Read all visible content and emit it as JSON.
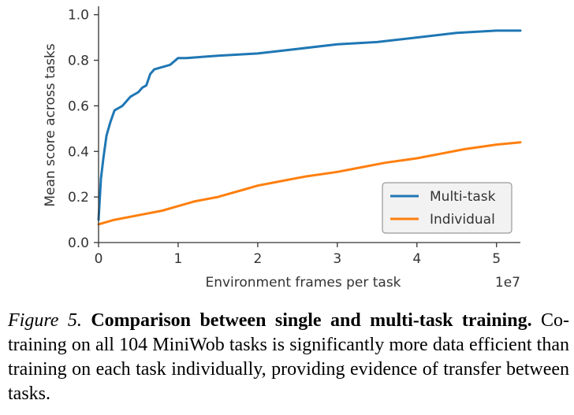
{
  "chart_data": {
    "type": "line",
    "xlabel": "Environment frames per task",
    "ylabel": "Mean score across tasks",
    "x_offset_label": "1e7",
    "xlim": [
      0,
      5.3
    ],
    "ylim": [
      0,
      1.03
    ],
    "xticks": [
      0,
      1,
      2,
      3,
      4,
      5
    ],
    "xtick_labels": [
      "0",
      "1",
      "2",
      "3",
      "4",
      "5"
    ],
    "yticks": [
      0.0,
      0.2,
      0.4,
      0.6,
      0.8,
      1.0
    ],
    "ytick_labels": [
      "0.0",
      "0.2",
      "0.4",
      "0.6",
      "0.8",
      "1.0"
    ],
    "grid": false,
    "legend_position": "lower-right",
    "series": [
      {
        "name": "Multi-task",
        "color": "#1f77b4",
        "x": [
          0,
          0.03,
          0.06,
          0.1,
          0.15,
          0.2,
          0.3,
          0.4,
          0.5,
          0.55,
          0.6,
          0.65,
          0.7,
          0.8,
          0.9,
          1.0,
          1.1,
          1.5,
          2.0,
          2.5,
          3.0,
          3.5,
          4.0,
          4.5,
          5.0,
          5.3
        ],
        "y": [
          0.1,
          0.28,
          0.37,
          0.47,
          0.53,
          0.58,
          0.6,
          0.64,
          0.66,
          0.68,
          0.69,
          0.74,
          0.76,
          0.77,
          0.78,
          0.81,
          0.81,
          0.82,
          0.83,
          0.85,
          0.87,
          0.88,
          0.9,
          0.92,
          0.93,
          0.93
        ]
      },
      {
        "name": "Individual",
        "color": "#ff7f0e",
        "x": [
          0,
          0.2,
          0.5,
          0.8,
          1.0,
          1.2,
          1.5,
          1.8,
          2.0,
          2.3,
          2.6,
          3.0,
          3.3,
          3.6,
          4.0,
          4.3,
          4.6,
          5.0,
          5.3
        ],
        "y": [
          0.08,
          0.1,
          0.12,
          0.14,
          0.16,
          0.18,
          0.2,
          0.23,
          0.25,
          0.27,
          0.29,
          0.31,
          0.33,
          0.35,
          0.37,
          0.39,
          0.41,
          0.43,
          0.44
        ]
      }
    ]
  },
  "caption": {
    "figure_label": "Figure 5.",
    "bold_title": "Comparison between single and multi-task training.",
    "body": "Co-training on all 104 MiniWob tasks is significantly more data efficient than training on each task individually, providing evidence of transfer between tasks."
  }
}
